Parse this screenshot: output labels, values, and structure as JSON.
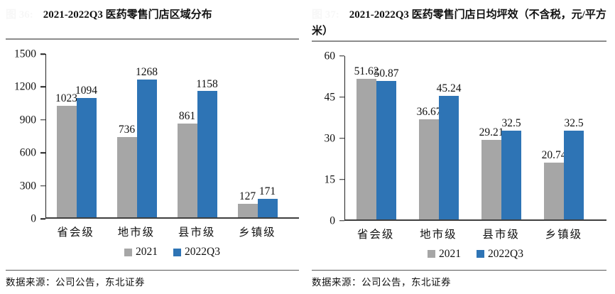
{
  "page": {
    "background": "#ffffff"
  },
  "colors": {
    "series": [
      "#A6A6A6",
      "#2E74B5"
    ],
    "axis": "#222222",
    "x_axis": "#3F3F3F",
    "title_rule": "#8C8C8C",
    "source_rule": "#595959",
    "faint_label": "#F7F7F7",
    "text": "#111111"
  },
  "figures": [
    {
      "faint_label": "图 36:"
    },
    {
      "faint_label": "图 37:"
    }
  ],
  "source_note": "数据来源：公司公告，东北证券",
  "chart_data": [
    {
      "type": "bar",
      "title": "2021-2022Q3 医药零售门店区域分布",
      "categories": [
        "省会级",
        "地市级",
        "县市级",
        "乡镇级"
      ],
      "series": [
        {
          "name": "2021",
          "values": [
            1023,
            736,
            861,
            127
          ]
        },
        {
          "name": "2022Q3",
          "values": [
            1094,
            1268,
            1158,
            171
          ]
        }
      ],
      "ylim": [
        0,
        1500
      ],
      "yticks": [
        0,
        300,
        600,
        900,
        1200,
        1500
      ],
      "grid": false,
      "data_labels": true,
      "legend_position": "bottom"
    },
    {
      "type": "bar",
      "title": "2021-2022Q3 医药零售门店日均坪效（不含税，元/平方米）",
      "categories": [
        "省会级",
        "地市级",
        "县市级",
        "乡镇级"
      ],
      "series": [
        {
          "name": "2021",
          "values": [
            51.62,
            36.67,
            29.21,
            20.74
          ]
        },
        {
          "name": "2022Q3",
          "values": [
            50.87,
            45.24,
            32.5,
            32.5
          ]
        }
      ],
      "ylim": [
        0,
        60
      ],
      "yticks": [
        0,
        15,
        30,
        45,
        60
      ],
      "grid": false,
      "data_labels": true,
      "legend_position": "bottom"
    }
  ]
}
